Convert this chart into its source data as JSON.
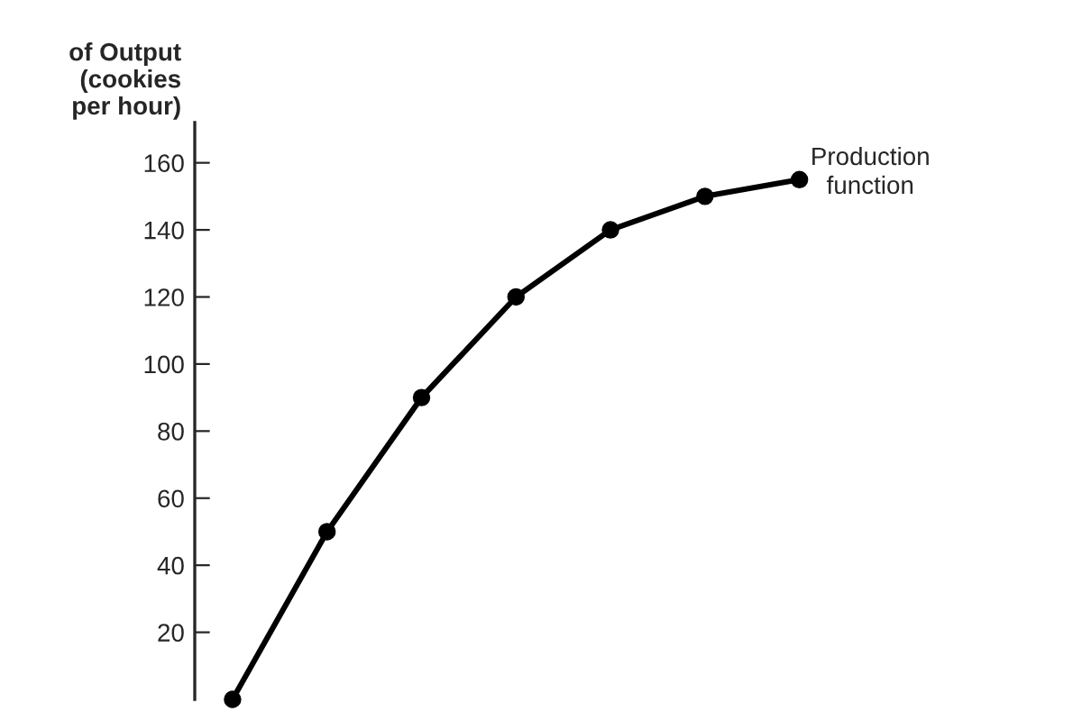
{
  "chart_data": {
    "type": "line",
    "ylabel": "of Output\n(cookies\nper hour)",
    "categories": [
      null,
      null,
      null,
      null,
      null,
      null,
      null
    ],
    "series": [
      {
        "name": "Production function",
        "color": "#000000",
        "values": [
          0,
          50,
          90,
          120,
          140,
          150,
          155
        ]
      }
    ],
    "ylim": [
      0,
      172
    ],
    "yticks": [
      20,
      40,
      60,
      80,
      100,
      120,
      140,
      160
    ],
    "marker": "circle",
    "line_style": "solid",
    "grid": false,
    "legend": false,
    "tick_labels": "y"
  }
}
